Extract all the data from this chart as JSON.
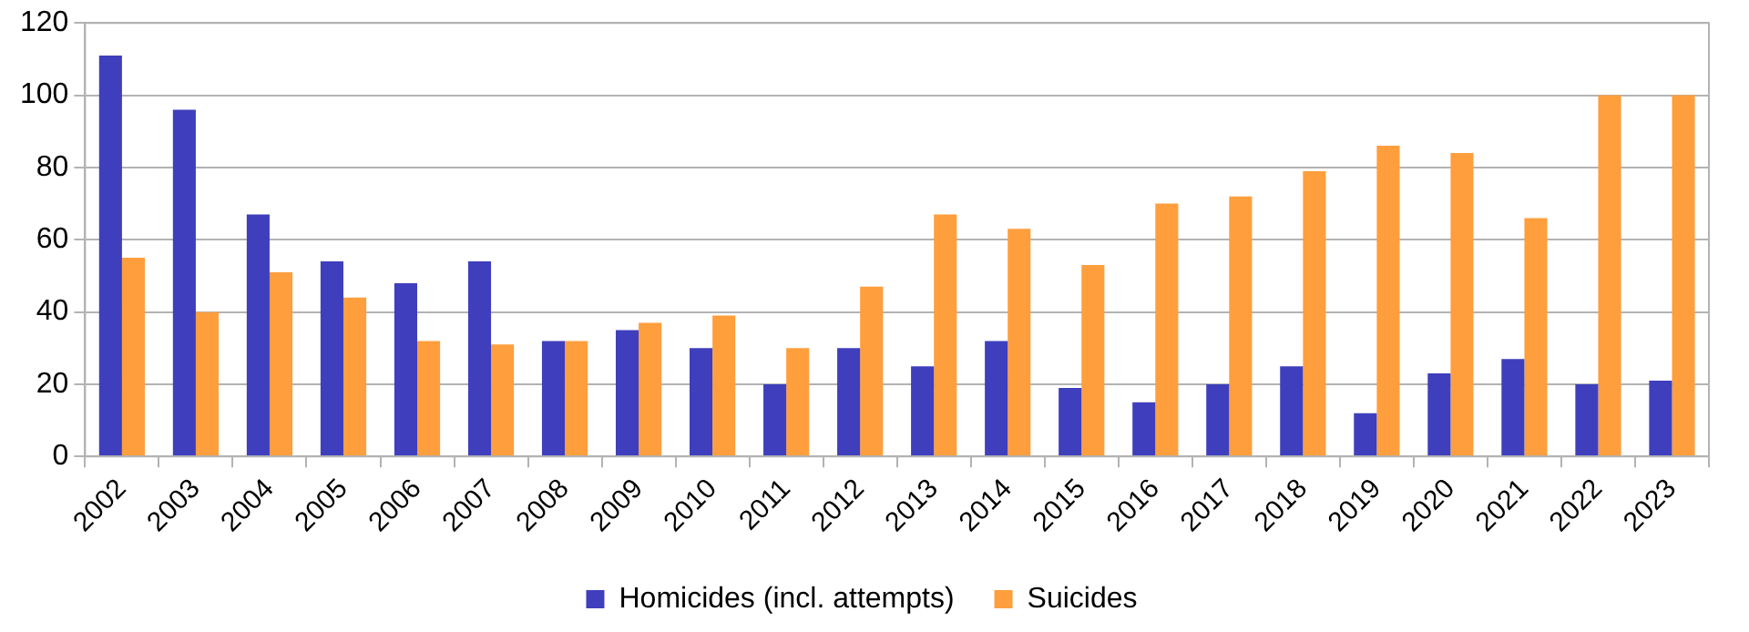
{
  "chart_data": {
    "type": "bar",
    "categories": [
      "2002",
      "2003",
      "2004",
      "2005",
      "2006",
      "2007",
      "2008",
      "2009",
      "2010",
      "2011",
      "2012",
      "2013",
      "2014",
      "2015",
      "2016",
      "2017",
      "2018",
      "2019",
      "2020",
      "2021",
      "2022",
      "2023"
    ],
    "series": [
      {
        "name": "Homicides (incl. attempts)",
        "color": "#3f3fbd",
        "values": [
          111,
          96,
          67,
          54,
          48,
          54,
          32,
          35,
          30,
          20,
          30,
          25,
          32,
          19,
          15,
          20,
          25,
          12,
          23,
          27,
          20,
          21
        ]
      },
      {
        "name": "Suicides",
        "color": "#ff9e3d",
        "values": [
          55,
          40,
          51,
          44,
          32,
          31,
          32,
          37,
          39,
          30,
          47,
          67,
          63,
          53,
          70,
          72,
          79,
          86,
          84,
          66,
          100,
          100
        ]
      }
    ],
    "ylim": [
      0,
      120
    ],
    "yticks": [
      0,
      20,
      40,
      60,
      80,
      100,
      120
    ],
    "grid": "y",
    "legend": "bottom"
  }
}
